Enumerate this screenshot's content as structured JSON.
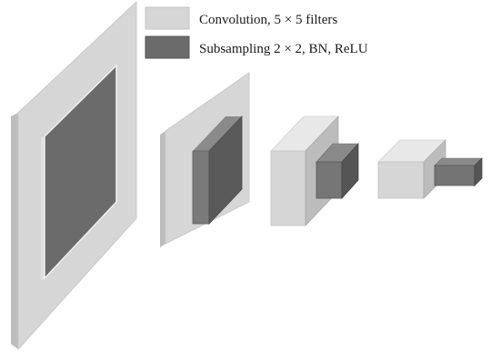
{
  "legend": {
    "convolution_label": "Convolution, 5 × 5 filters",
    "subsampling_label": "Subsampling 2 × 2, BN, ReLU"
  },
  "colors": {
    "convolution_face": "#d6d6d6",
    "convolution_side": "#b8b8b8",
    "convolution_top": "#e8e8e8",
    "subsampling_face": "#6b6b6b",
    "subsampling_side": "#4e4e4e",
    "subsampling_top": "#8a8a8a",
    "edge": "#a0a0a0"
  },
  "layers": [
    {
      "name": "conv-layer-1",
      "kind": "convolution"
    },
    {
      "name": "pool-layer-1",
      "kind": "subsampling"
    },
    {
      "name": "conv-layer-2",
      "kind": "convolution"
    },
    {
      "name": "pool-layer-2",
      "kind": "subsampling"
    },
    {
      "name": "conv-layer-3",
      "kind": "convolution"
    },
    {
      "name": "pool-layer-3",
      "kind": "subsampling"
    },
    {
      "name": "conv-layer-4",
      "kind": "convolution"
    },
    {
      "name": "pool-layer-4",
      "kind": "subsampling"
    }
  ]
}
